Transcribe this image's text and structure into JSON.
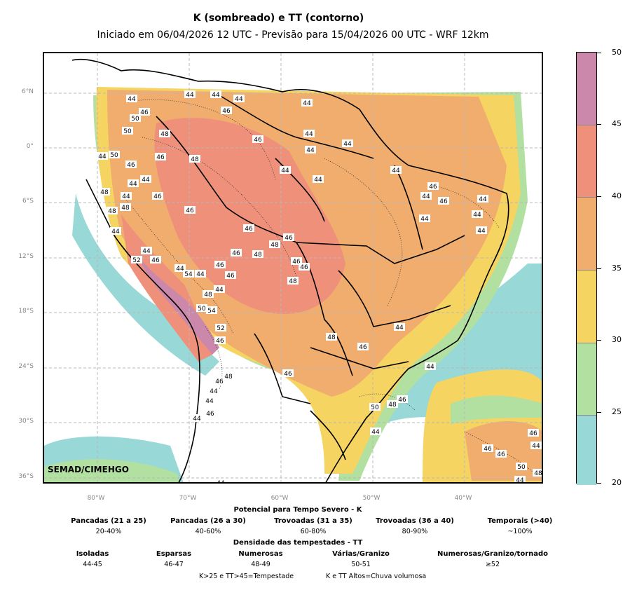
{
  "title": "K (sombreado) e TT (contorno)",
  "subtitle": "Iniciado em 06/04/2026 12 UTC - Previsão para 15/04/2026 00 UTC - WRF 12km",
  "watermark": "SEMAD/CIMEHGO",
  "map": {
    "lat_labels": [
      "6°N",
      "0°",
      "6°S",
      "12°S",
      "18°S",
      "24°S",
      "30°S",
      "36°S"
    ],
    "lon_labels": [
      "80°W",
      "70°W",
      "60°W",
      "50°W",
      "40°W"
    ],
    "grid": true
  },
  "colorbar": {
    "ticks": [
      "50",
      "45",
      "40",
      "35",
      "30",
      "25",
      "20"
    ],
    "colors": [
      "#cc88aa",
      "#ef917a",
      "#f0ad6e",
      "#f5d462",
      "#b2e0a0",
      "#98d8d6"
    ]
  },
  "contour_labels": [
    "44",
    "46",
    "50",
    "48",
    "52",
    "54"
  ],
  "legend": {
    "k_title": "Potencial para Tempo Severo - K",
    "k_items": [
      {
        "h": "Pancadas (21 a 25)",
        "v": "20-40%"
      },
      {
        "h": "Pancadas (26 a 30)",
        "v": "40-60%"
      },
      {
        "h": "Trovoadas (31 a 35)",
        "v": "60-80%"
      },
      {
        "h": "Trovoadas (36 a 40)",
        "v": "80-90%"
      },
      {
        "h": "Temporais (>40)",
        "v": "~100%"
      }
    ],
    "tt_title": "Densidade das tempestades - TT",
    "tt_items": [
      {
        "h": "Isoladas",
        "v": "44-45"
      },
      {
        "h": "Esparsas",
        "v": "46-47"
      },
      {
        "h": "Numerosas",
        "v": "48-49"
      },
      {
        "h": "Várias/Granizo",
        "v": "50-51"
      },
      {
        "h": "Numerosas/Granizo/tornado",
        "v": "≥52"
      }
    ],
    "note_left": "K>25 e TT>45=Tempestade",
    "note_right": "K e TT Altos=Chuva volumosa"
  }
}
